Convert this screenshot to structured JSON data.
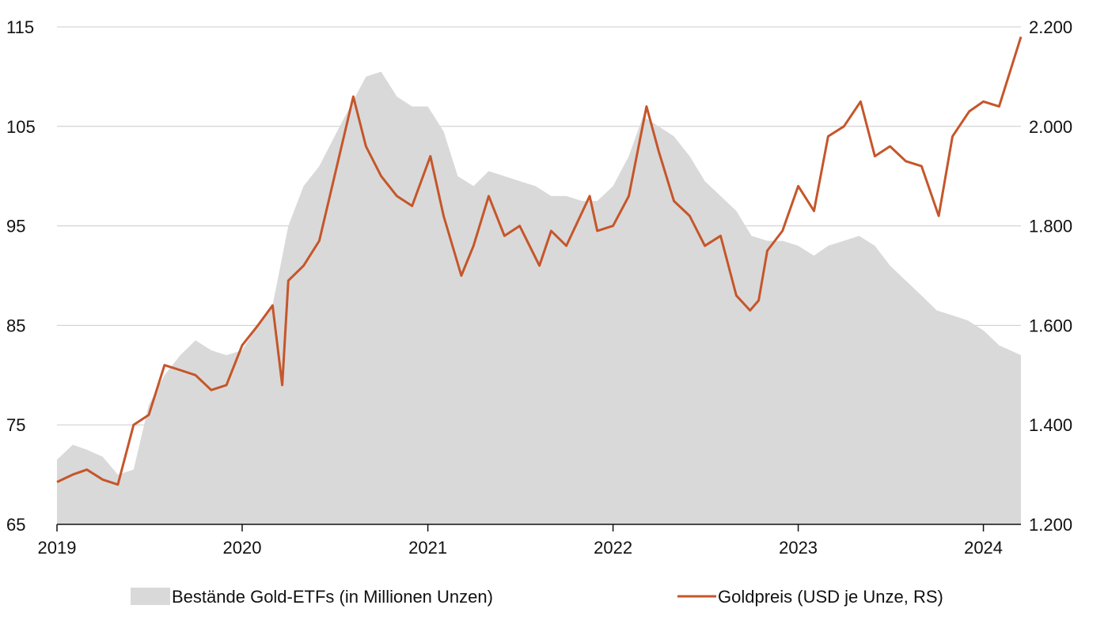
{
  "chart_data": {
    "type": "area+line",
    "x_range": [
      "2019-01-01",
      "2024-03-15"
    ],
    "x_ticks": [
      "2019",
      "2020",
      "2021",
      "2022",
      "2023",
      "2024"
    ],
    "y_left": {
      "min": 65,
      "max": 115,
      "ticks": [
        "65",
        "75",
        "85",
        "95",
        "105",
        "115"
      ]
    },
    "y_right": {
      "min": 1200,
      "max": 2200,
      "ticks": [
        "1.200",
        "1.400",
        "1.600",
        "1.800",
        "2.000",
        "2.200"
      ]
    },
    "grid": true,
    "legend_position": "bottom",
    "colors": {
      "area": "#d9d9d9",
      "line": "#c5562a",
      "grid": "#cccccc",
      "axis": "#111111"
    },
    "series": [
      {
        "name": "Bestände Gold-ETFs (in Millionen Unzen)",
        "axis": "left",
        "kind": "area",
        "x": [
          "2019-01-01",
          "2019-02-01",
          "2019-03-01",
          "2019-04-01",
          "2019-05-01",
          "2019-06-01",
          "2019-07-01",
          "2019-08-01",
          "2019-09-01",
          "2019-10-01",
          "2019-11-01",
          "2019-12-01",
          "2020-01-01",
          "2020-02-01",
          "2020-03-01",
          "2020-04-01",
          "2020-05-01",
          "2020-06-01",
          "2020-07-01",
          "2020-08-01",
          "2020-09-01",
          "2020-10-01",
          "2020-11-01",
          "2020-12-01",
          "2021-01-01",
          "2021-02-01",
          "2021-03-01",
          "2021-04-01",
          "2021-05-01",
          "2021-06-01",
          "2021-07-01",
          "2021-08-01",
          "2021-09-01",
          "2021-10-01",
          "2021-11-01",
          "2021-12-01",
          "2022-01-01",
          "2022-02-01",
          "2022-03-01",
          "2022-04-01",
          "2022-05-01",
          "2022-06-01",
          "2022-07-01",
          "2022-08-01",
          "2022-09-01",
          "2022-10-01",
          "2022-11-01",
          "2022-12-01",
          "2023-01-01",
          "2023-02-01",
          "2023-03-01",
          "2023-04-01",
          "2023-05-01",
          "2023-06-01",
          "2023-07-01",
          "2023-08-01",
          "2023-09-01",
          "2023-10-01",
          "2023-11-01",
          "2023-12-01",
          "2024-01-01",
          "2024-02-01",
          "2024-03-15"
        ],
        "values": [
          71.5,
          73,
          72.5,
          71.8,
          70,
          70.5,
          77,
          80,
          82,
          83.5,
          82.5,
          82,
          82.5,
          85,
          87,
          95,
          99,
          101,
          104,
          107,
          110,
          110.5,
          108,
          107,
          107,
          104.5,
          100,
          99,
          100.5,
          100,
          99.5,
          99,
          98,
          98,
          97.5,
          97.5,
          99,
          102,
          106,
          105,
          104,
          102,
          99.5,
          98,
          96.5,
          94,
          93.5,
          93.5,
          93,
          92,
          93,
          93.5,
          94,
          93,
          91,
          89.5,
          88,
          86.5,
          86,
          85.5,
          84.5,
          83,
          82
        ]
      },
      {
        "name": "Goldpreis (USD je Unze, RS)",
        "axis": "right",
        "kind": "line",
        "x": [
          "2019-01-01",
          "2019-02-01",
          "2019-03-01",
          "2019-04-01",
          "2019-05-01",
          "2019-06-01",
          "2019-07-01",
          "2019-08-01",
          "2019-09-01",
          "2019-10-01",
          "2019-11-01",
          "2019-12-01",
          "2020-01-01",
          "2020-02-01",
          "2020-03-01",
          "2020-03-20",
          "2020-04-01",
          "2020-05-01",
          "2020-06-01",
          "2020-07-01",
          "2020-08-07",
          "2020-09-01",
          "2020-10-01",
          "2020-11-01",
          "2020-12-01",
          "2021-01-06",
          "2021-02-01",
          "2021-03-08",
          "2021-04-01",
          "2021-05-01",
          "2021-06-01",
          "2021-07-01",
          "2021-08-09",
          "2021-09-01",
          "2021-10-01",
          "2021-11-16",
          "2021-12-01",
          "2022-01-01",
          "2022-02-01",
          "2022-03-08",
          "2022-04-01",
          "2022-05-01",
          "2022-06-01",
          "2022-07-01",
          "2022-08-01",
          "2022-09-01",
          "2022-09-28",
          "2022-10-15",
          "2022-11-01",
          "2022-12-01",
          "2023-01-01",
          "2023-02-01",
          "2023-03-01",
          "2023-04-01",
          "2023-05-04",
          "2023-06-01",
          "2023-07-01",
          "2023-08-01",
          "2023-09-01",
          "2023-10-05",
          "2023-11-01",
          "2023-12-04",
          "2024-01-01",
          "2024-02-01",
          "2024-03-15"
        ],
        "values": [
          1285,
          1300,
          1310,
          1290,
          1280,
          1400,
          1420,
          1520,
          1510,
          1500,
          1470,
          1480,
          1560,
          1600,
          1640,
          1480,
          1690,
          1720,
          1770,
          1900,
          2060,
          1960,
          1900,
          1860,
          1840,
          1940,
          1820,
          1700,
          1760,
          1860,
          1780,
          1800,
          1720,
          1790,
          1760,
          1860,
          1790,
          1800,
          1860,
          2040,
          1950,
          1850,
          1820,
          1760,
          1780,
          1660,
          1630,
          1650,
          1750,
          1790,
          1880,
          1830,
          1980,
          2000,
          2050,
          1940,
          1960,
          1930,
          1920,
          1820,
          1980,
          2030,
          2050,
          2040,
          2180
        ]
      }
    ]
  },
  "legend": {
    "area_label": "Bestände Gold-ETFs (in Millionen Unzen)",
    "line_label": "Goldpreis (USD je Unze, RS)"
  }
}
